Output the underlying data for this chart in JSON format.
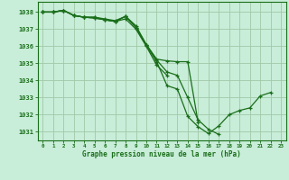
{
  "title": "Graphe pression niveau de la mer (hPa)",
  "background_color": "#c8edd8",
  "grid_color": "#a0c8a8",
  "line_color": "#1a6e1a",
  "marker_color": "#1a6e1a",
  "xlim": [
    -0.5,
    23.5
  ],
  "ylim": [
    1030.5,
    1038.6
  ],
  "xticks": [
    0,
    1,
    2,
    3,
    4,
    5,
    6,
    7,
    8,
    9,
    10,
    11,
    12,
    13,
    14,
    15,
    16,
    17,
    18,
    19,
    20,
    21,
    22,
    23
  ],
  "yticks": [
    1031,
    1032,
    1033,
    1034,
    1035,
    1036,
    1037,
    1038
  ],
  "series": [
    {
      "x": [
        0,
        1,
        2,
        3,
        4,
        5,
        6,
        7,
        8,
        9,
        10,
        11,
        12,
        13,
        14,
        15,
        16,
        17,
        18,
        19,
        20,
        21,
        22
      ],
      "y": [
        1038.0,
        1038.0,
        1038.1,
        1037.8,
        1037.7,
        1037.65,
        1037.55,
        1037.45,
        1037.75,
        1037.1,
        1036.05,
        1035.1,
        1033.7,
        1033.5,
        1031.9,
        1031.3,
        1030.9,
        1031.35,
        1032.0,
        1032.25,
        1032.4,
        1033.1,
        1033.3
      ]
    },
    {
      "x": [
        0,
        1,
        2,
        3,
        4,
        5,
        6,
        7,
        8,
        9,
        10,
        11,
        12,
        13,
        14,
        15,
        16,
        17
      ],
      "y": [
        1038.0,
        1038.0,
        1038.1,
        1037.8,
        1037.7,
        1037.65,
        1037.55,
        1037.45,
        1037.75,
        1037.1,
        1036.1,
        1035.2,
        1034.5,
        1034.3,
        1033.0,
        1031.7,
        1031.15,
        1030.85
      ]
    },
    {
      "x": [
        0,
        1,
        2,
        3,
        4,
        5,
        6,
        7,
        8,
        9,
        10,
        11,
        12
      ],
      "y": [
        1038.0,
        1038.0,
        1038.1,
        1037.8,
        1037.7,
        1037.7,
        1037.55,
        1037.45,
        1037.6,
        1037.0,
        1036.0,
        1034.9,
        1034.3
      ]
    },
    {
      "x": [
        0,
        1,
        2,
        3,
        4,
        5,
        6,
        7,
        8,
        9,
        10,
        11,
        12,
        13,
        14,
        15
      ],
      "y": [
        1038.0,
        1038.0,
        1038.1,
        1037.8,
        1037.7,
        1037.7,
        1037.6,
        1037.5,
        1037.75,
        1037.2,
        1036.1,
        1035.25,
        1035.15,
        1035.1,
        1035.1,
        1031.55
      ]
    }
  ],
  "xlabel_fontsize": 5.5,
  "ytick_fontsize": 5.0,
  "xtick_fontsize": 4.2
}
